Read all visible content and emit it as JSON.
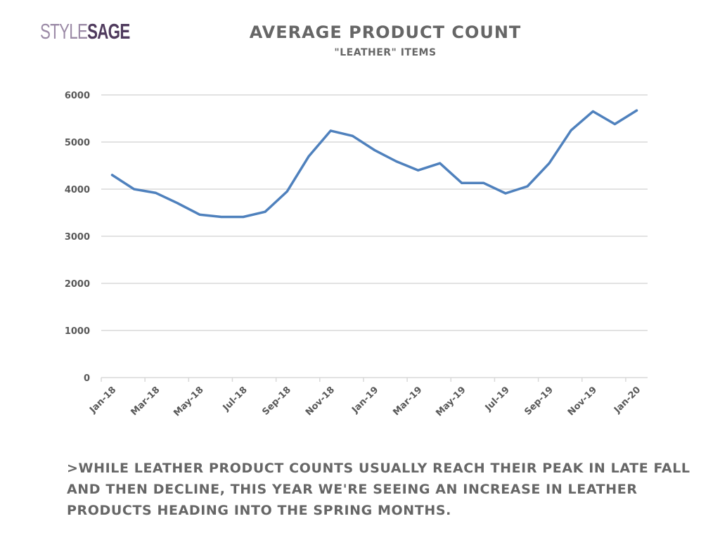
{
  "logo": {
    "part1": "STYLE",
    "part2": "SAGE"
  },
  "header": {
    "title": "AVERAGE PRODUCT COUNT",
    "subtitle": "\"LEATHER\" ITEMS"
  },
  "note": ">WHILE LEATHER PRODUCT COUNTS USUALLY REACH THEIR PEAK IN LATE FALL AND THEN DECLINE, THIS YEAR WE'RE SEEING AN INCREASE IN LEATHER PRODUCTS HEADING INTO THE SPRING MONTHS.",
  "colors": {
    "line": "#4f81bd",
    "grid": "#d9d9d9",
    "text": "#666666",
    "logo_light": "#9b8aa6",
    "logo_dark": "#4f3a5d"
  },
  "chart_data": {
    "type": "line",
    "title": "AVERAGE PRODUCT COUNT",
    "subtitle": "\"LEATHER\" ITEMS",
    "xlabel": "",
    "ylabel": "",
    "ylim": [
      0,
      6000
    ],
    "yticks": [
      0,
      1000,
      2000,
      3000,
      4000,
      5000,
      6000
    ],
    "grid": true,
    "legend": "none",
    "x": [
      "Jan-18",
      "Feb-18",
      "Mar-18",
      "Apr-18",
      "May-18",
      "Jun-18",
      "Jul-18",
      "Aug-18",
      "Sep-18",
      "Oct-18",
      "Nov-18",
      "Dec-18",
      "Jan-19",
      "Feb-19",
      "Mar-19",
      "Apr-19",
      "May-19",
      "Jun-19",
      "Jul-19",
      "Aug-19",
      "Sep-19",
      "Oct-19",
      "Nov-19",
      "Dec-19",
      "Jan-20"
    ],
    "xtick_labels": [
      "Jan-18",
      "Mar-18",
      "May-18",
      "Jul-18",
      "Sep-18",
      "Nov-18",
      "Jan-19",
      "Mar-19",
      "May-19",
      "Jul-19",
      "Sep-19",
      "Nov-19",
      "Jan-20"
    ],
    "series": [
      {
        "name": "Average Product Count",
        "values": [
          4300,
          4000,
          3920,
          3700,
          3460,
          3410,
          3410,
          3520,
          3950,
          4700,
          5240,
          5130,
          4830,
          4590,
          4400,
          4550,
          4130,
          4130,
          3910,
          4060,
          4550,
          5250,
          5650,
          5380,
          5670
        ]
      }
    ]
  }
}
